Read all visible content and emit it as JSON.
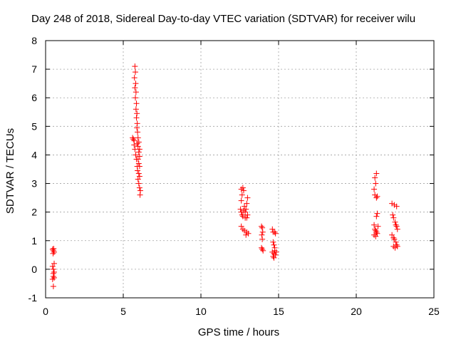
{
  "chart_data": {
    "type": "scatter",
    "title": "Day 248 of 2018, Sidereal Day-to-day VTEC variation (SDTVAR) for receiver wilu",
    "xlabel": "GPS time / hours",
    "ylabel": "SDTVAR / TECUs",
    "xlim": [
      0,
      25
    ],
    "ylim": [
      -1,
      8
    ],
    "xticks": [
      0,
      5,
      10,
      15,
      20,
      25
    ],
    "yticks": [
      -1,
      0,
      1,
      2,
      3,
      4,
      5,
      6,
      7,
      8
    ],
    "grid": true,
    "marker": "+",
    "marker_color": "#ff0000",
    "series": [
      {
        "name": "SDTVAR",
        "points": [
          [
            0.45,
            0.7
          ],
          [
            0.5,
            0.65
          ],
          [
            0.55,
            0.6
          ],
          [
            0.48,
            0.55
          ],
          [
            0.52,
            0.72
          ],
          [
            0.45,
            0.1
          ],
          [
            0.5,
            0.0
          ],
          [
            0.55,
            -0.1
          ],
          [
            0.5,
            -0.25
          ],
          [
            0.55,
            -0.3
          ],
          [
            0.45,
            -0.35
          ],
          [
            0.5,
            -0.6
          ],
          [
            0.55,
            0.2
          ],
          [
            0.5,
            -0.15
          ],
          [
            5.75,
            7.1
          ],
          [
            5.78,
            6.9
          ],
          [
            5.72,
            6.7
          ],
          [
            5.8,
            6.5
          ],
          [
            5.75,
            6.35
          ],
          [
            5.82,
            6.2
          ],
          [
            5.78,
            6.0
          ],
          [
            5.85,
            5.8
          ],
          [
            5.82,
            5.6
          ],
          [
            5.88,
            5.45
          ],
          [
            5.85,
            5.3
          ],
          [
            5.9,
            5.1
          ],
          [
            5.88,
            4.95
          ],
          [
            5.92,
            4.8
          ],
          [
            5.6,
            4.6
          ],
          [
            5.65,
            4.55
          ],
          [
            5.7,
            4.5
          ],
          [
            5.95,
            4.6
          ],
          [
            5.9,
            4.4
          ],
          [
            6.0,
            4.45
          ],
          [
            5.7,
            4.35
          ],
          [
            5.95,
            4.3
          ],
          [
            6.05,
            4.2
          ],
          [
            5.75,
            4.2
          ],
          [
            6.0,
            4.1
          ],
          [
            6.05,
            3.95
          ],
          [
            5.8,
            4.0
          ],
          [
            5.85,
            3.85
          ],
          [
            5.95,
            3.85
          ],
          [
            6.0,
            3.7
          ],
          [
            5.9,
            3.6
          ],
          [
            6.05,
            3.6
          ],
          [
            5.92,
            3.45
          ],
          [
            6.0,
            3.35
          ],
          [
            6.05,
            3.25
          ],
          [
            5.95,
            3.15
          ],
          [
            6.0,
            3.0
          ],
          [
            6.05,
            2.85
          ],
          [
            6.1,
            2.75
          ],
          [
            6.08,
            2.6
          ],
          [
            12.6,
            2.8
          ],
          [
            12.7,
            2.85
          ],
          [
            12.75,
            2.75
          ],
          [
            12.65,
            2.6
          ],
          [
            12.6,
            2.4
          ],
          [
            12.55,
            2.1
          ],
          [
            12.6,
            2.0
          ],
          [
            12.65,
            1.9
          ],
          [
            12.7,
            1.85
          ],
          [
            12.8,
            2.2
          ],
          [
            12.85,
            2.0
          ],
          [
            12.9,
            2.1
          ],
          [
            12.95,
            2.3
          ],
          [
            13.0,
            2.5
          ],
          [
            12.95,
            1.8
          ],
          [
            13.0,
            1.9
          ],
          [
            12.6,
            1.5
          ],
          [
            12.7,
            1.4
          ],
          [
            12.8,
            1.35
          ],
          [
            12.9,
            1.2
          ],
          [
            12.95,
            1.3
          ],
          [
            13.05,
            1.25
          ],
          [
            12.85,
            1.8
          ],
          [
            12.75,
            2.05
          ],
          [
            13.9,
            1.5
          ],
          [
            13.95,
            1.45
          ],
          [
            13.98,
            1.3
          ],
          [
            13.92,
            1.2
          ],
          [
            13.95,
            1.05
          ],
          [
            13.9,
            0.75
          ],
          [
            13.95,
            0.7
          ],
          [
            14.0,
            0.65
          ],
          [
            14.6,
            1.4
          ],
          [
            14.65,
            1.3
          ],
          [
            14.75,
            1.3
          ],
          [
            14.8,
            1.25
          ],
          [
            14.65,
            0.95
          ],
          [
            14.7,
            0.85
          ],
          [
            14.75,
            0.75
          ],
          [
            14.6,
            0.6
          ],
          [
            14.7,
            0.55
          ],
          [
            14.8,
            0.5
          ],
          [
            14.65,
            0.45
          ],
          [
            14.75,
            0.65
          ],
          [
            14.85,
            0.6
          ],
          [
            14.7,
            0.4
          ],
          [
            21.2,
            3.2
          ],
          [
            21.3,
            3.35
          ],
          [
            21.25,
            3.0
          ],
          [
            21.15,
            2.8
          ],
          [
            21.2,
            2.6
          ],
          [
            21.3,
            2.5
          ],
          [
            21.35,
            2.55
          ],
          [
            21.35,
            1.95
          ],
          [
            21.3,
            1.85
          ],
          [
            21.15,
            1.55
          ],
          [
            21.2,
            1.4
          ],
          [
            21.25,
            1.35
          ],
          [
            21.3,
            1.3
          ],
          [
            21.15,
            1.2
          ],
          [
            21.25,
            1.15
          ],
          [
            21.35,
            1.25
          ],
          [
            21.4,
            1.5
          ],
          [
            22.3,
            2.3
          ],
          [
            22.45,
            2.25
          ],
          [
            22.6,
            2.2
          ],
          [
            22.35,
            1.9
          ],
          [
            22.4,
            1.8
          ],
          [
            22.5,
            1.65
          ],
          [
            22.55,
            1.55
          ],
          [
            22.6,
            1.5
          ],
          [
            22.65,
            1.4
          ],
          [
            22.3,
            1.2
          ],
          [
            22.4,
            1.1
          ],
          [
            22.45,
            1.05
          ],
          [
            22.55,
            0.95
          ],
          [
            22.6,
            0.85
          ],
          [
            22.65,
            0.8
          ],
          [
            22.5,
            0.75
          ],
          [
            22.4,
            0.8
          ]
        ]
      }
    ]
  }
}
